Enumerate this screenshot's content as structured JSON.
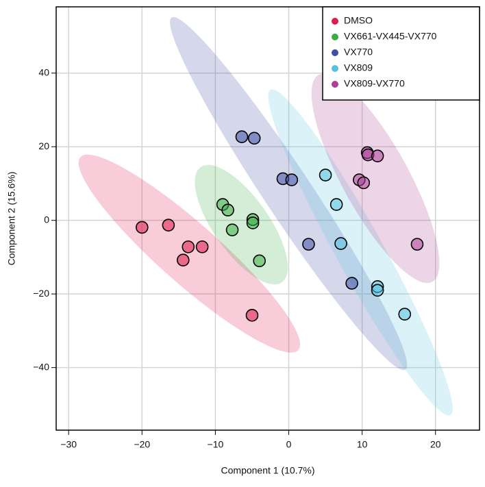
{
  "chart_data": {
    "type": "scatter",
    "xlabel": "Component 1 (10.7%)",
    "ylabel": "Component 2 (15.6%)",
    "xlim": [
      -31.7,
      26
    ],
    "ylim": [
      -57,
      58
    ],
    "xticks": [
      {
        "value": -30,
        "label": "−30"
      },
      {
        "value": -20,
        "label": "−20"
      },
      {
        "value": -10,
        "label": "−10"
      },
      0,
      10,
      20
    ],
    "yticks": [
      {
        "value": -40,
        "label": "−40"
      },
      {
        "value": -20,
        "label": "−20"
      },
      0,
      20,
      40
    ],
    "grid": true,
    "legend": "upper right",
    "series": [
      {
        "name": "DMSO",
        "color": "#e0194e",
        "x": [
          -20,
          -16.4,
          -13.7,
          -11.8,
          -14.4,
          -5.0
        ],
        "y": [
          -1.9,
          -1.3,
          -7.2,
          -7.2,
          -10.8,
          -25.8
        ]
      },
      {
        "name": "VX661-VX445-VX770",
        "color": "#3aae45",
        "x": [
          -9,
          -8.3,
          -7.7,
          -4.9,
          -4.9,
          -4.0
        ],
        "y": [
          4.3,
          2.8,
          -2.6,
          0.2,
          -0.7,
          -11
        ]
      },
      {
        "name": "VX770",
        "color": "#3e4fa6",
        "x": [
          -6.4,
          -4.7,
          -0.8,
          0.4,
          2.7,
          8.6
        ],
        "y": [
          22.7,
          22.3,
          11.3,
          11,
          -6.5,
          -17.1
        ]
      },
      {
        "name": "VX809",
        "color": "#55c3df",
        "x": [
          5,
          6.5,
          7.1,
          12.1,
          12.1,
          15.8
        ],
        "y": [
          12.3,
          4.3,
          -6.3,
          -18,
          -19,
          -25.5
        ]
      },
      {
        "name": "VX809-VX770",
        "color": "#ad3f98",
        "x": [
          10.7,
          10.8,
          12.1,
          9.6,
          10.2,
          17.5
        ],
        "y": [
          18.4,
          17.8,
          17.5,
          11,
          10.2,
          -6.5
        ]
      }
    ]
  }
}
